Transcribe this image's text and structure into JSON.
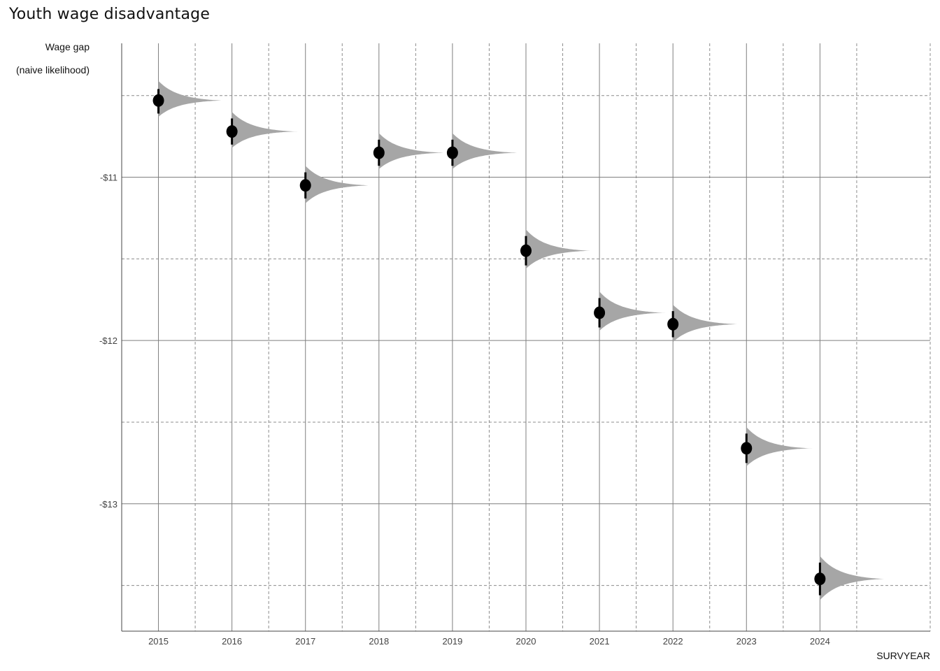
{
  "chart_data": {
    "type": "scatter",
    "title": "Youth wage disadvantage",
    "ylabel_lines": [
      "Wage gap",
      "(naive likelihood)"
    ],
    "xlabel": "SURVYEAR",
    "x_ticks": [
      "2015",
      "2016",
      "2017",
      "2018",
      "2019",
      "2020",
      "2021",
      "2022",
      "2023",
      "2024"
    ],
    "y_ticks": [
      {
        "value": -11,
        "label": "-$11"
      },
      {
        "value": -12,
        "label": "-$12"
      },
      {
        "value": -13,
        "label": "-$13"
      }
    ],
    "xlim": [
      2014.5,
      2025.5
    ],
    "ylim": [
      -13.78,
      -10.18
    ],
    "grid": true,
    "colors": {
      "point": "#000000",
      "density": "#a6a6a6",
      "major_grid": "#7f7f7f",
      "minor_grid": "#8c8c8c"
    },
    "series": [
      {
        "points": [
          {
            "x": "2015",
            "estimate": -10.53,
            "interval": [
              -10.61,
              -10.46
            ],
            "density_range": [
              -10.63,
              -10.41
            ]
          },
          {
            "x": "2016",
            "estimate": -10.72,
            "interval": [
              -10.8,
              -10.64
            ],
            "density_range": [
              -10.82,
              -10.6
            ]
          },
          {
            "x": "2017",
            "estimate": -11.05,
            "interval": [
              -11.13,
              -10.97
            ],
            "density_range": [
              -11.16,
              -10.93
            ]
          },
          {
            "x": "2018",
            "estimate": -10.85,
            "interval": [
              -10.93,
              -10.77
            ],
            "density_range": [
              -10.95,
              -10.73
            ]
          },
          {
            "x": "2019",
            "estimate": -10.85,
            "interval": [
              -10.93,
              -10.77
            ],
            "density_range": [
              -10.95,
              -10.73
            ]
          },
          {
            "x": "2020",
            "estimate": -11.45,
            "interval": [
              -11.54,
              -11.36
            ],
            "density_range": [
              -11.56,
              -11.32
            ]
          },
          {
            "x": "2021",
            "estimate": -11.83,
            "interval": [
              -11.92,
              -11.74
            ],
            "density_range": [
              -11.94,
              -11.7
            ]
          },
          {
            "x": "2022",
            "estimate": -11.9,
            "interval": [
              -11.98,
              -11.82
            ],
            "density_range": [
              -12.01,
              -11.78
            ]
          },
          {
            "x": "2023",
            "estimate": -12.66,
            "interval": [
              -12.75,
              -12.57
            ],
            "density_range": [
              -12.77,
              -12.53
            ]
          },
          {
            "x": "2024",
            "estimate": -13.46,
            "interval": [
              -13.56,
              -13.36
            ],
            "density_range": [
              -13.59,
              -13.32
            ]
          }
        ]
      }
    ]
  }
}
